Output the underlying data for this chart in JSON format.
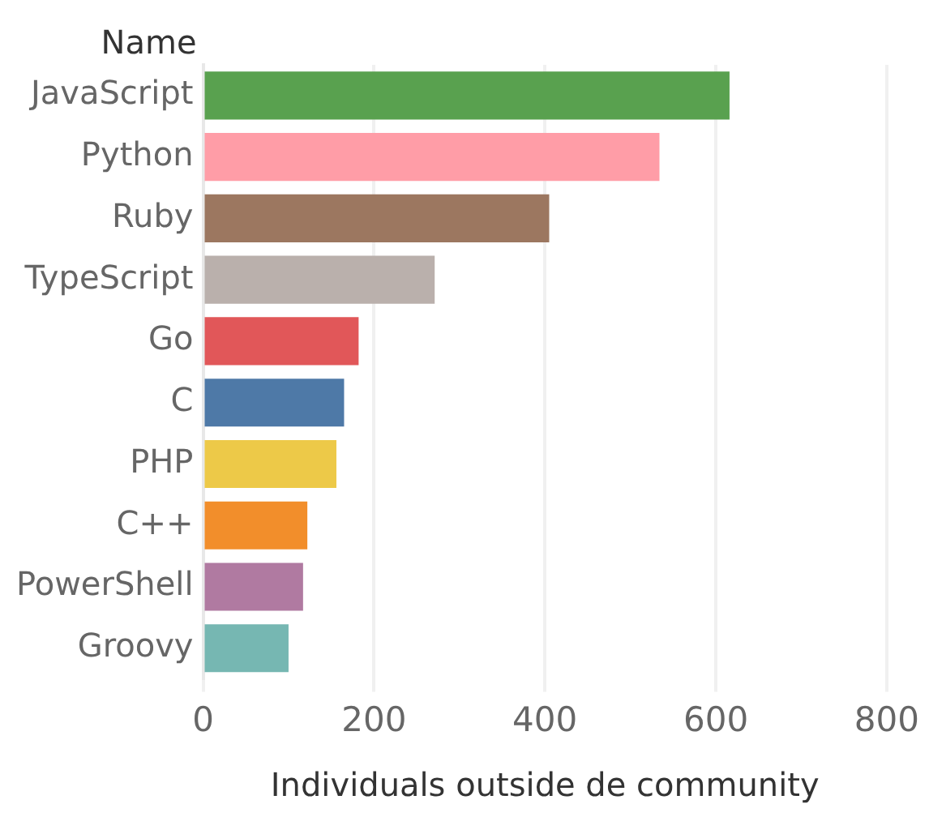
{
  "chart_data": {
    "type": "bar",
    "orientation": "horizontal",
    "ylabel": "Name",
    "xlabel": "Individuals outside de community",
    "categories": [
      "JavaScript",
      "Python",
      "Ruby",
      "TypeScript",
      "Go",
      "C",
      "PHP",
      "C++",
      "PowerShell",
      "Groovy"
    ],
    "values": [
      616,
      534,
      405,
      271,
      182,
      165,
      156,
      122,
      117,
      100
    ],
    "colors": [
      "#59a14f",
      "#ff9da7",
      "#9c7760",
      "#bab0ac",
      "#e15759",
      "#4e79a7",
      "#edc948",
      "#f28e2b",
      "#b07aa1",
      "#76b7b2"
    ],
    "xlim": [
      0,
      800
    ],
    "xticks": [
      0,
      200,
      400,
      600,
      800
    ],
    "grid": "x"
  }
}
